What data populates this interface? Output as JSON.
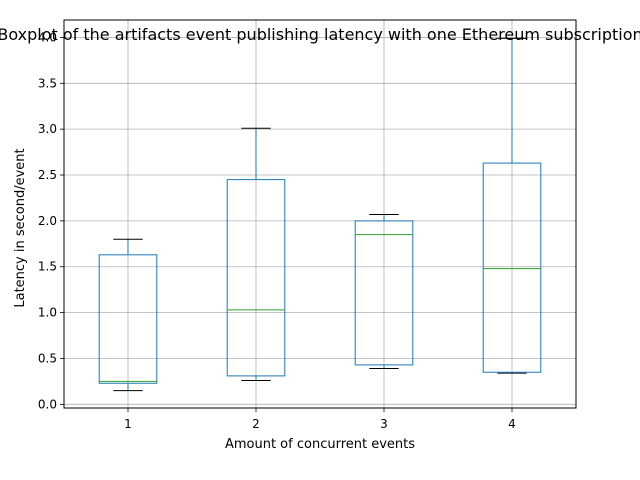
{
  "chart_data": {
    "type": "boxplot",
    "title": "Boxplot of the artifacts event publishing latency with one Ethereum subscription",
    "xlabel": "Amount of concurrent events",
    "ylabel": "Latency in second/event",
    "categories": [
      "1",
      "2",
      "3",
      "4"
    ],
    "boxes": [
      {
        "category": "1",
        "whisker_low": 0.15,
        "q1": 0.23,
        "median": 0.25,
        "q3": 1.63,
        "whisker_high": 1.8
      },
      {
        "category": "2",
        "whisker_low": 0.26,
        "q1": 0.31,
        "median": 1.03,
        "q3": 2.45,
        "whisker_high": 3.01
      },
      {
        "category": "3",
        "whisker_low": 0.39,
        "q1": 0.43,
        "median": 1.85,
        "q3": 2.0,
        "whisker_high": 2.07
      },
      {
        "category": "4",
        "whisker_low": 0.34,
        "q1": 0.35,
        "median": 1.48,
        "q3": 2.63,
        "whisker_high": 3.99
      }
    ],
    "ylim": [
      -0.04,
      4.19
    ],
    "yticks": [
      "0.0",
      "0.5",
      "1.0",
      "1.5",
      "2.0",
      "2.5",
      "3.0",
      "3.5",
      "4.0"
    ],
    "grid": true,
    "colors": {
      "box": "#1f77b4",
      "median": "#2ca02c",
      "cap": "#000000",
      "grid": "#b0b0b0"
    }
  }
}
